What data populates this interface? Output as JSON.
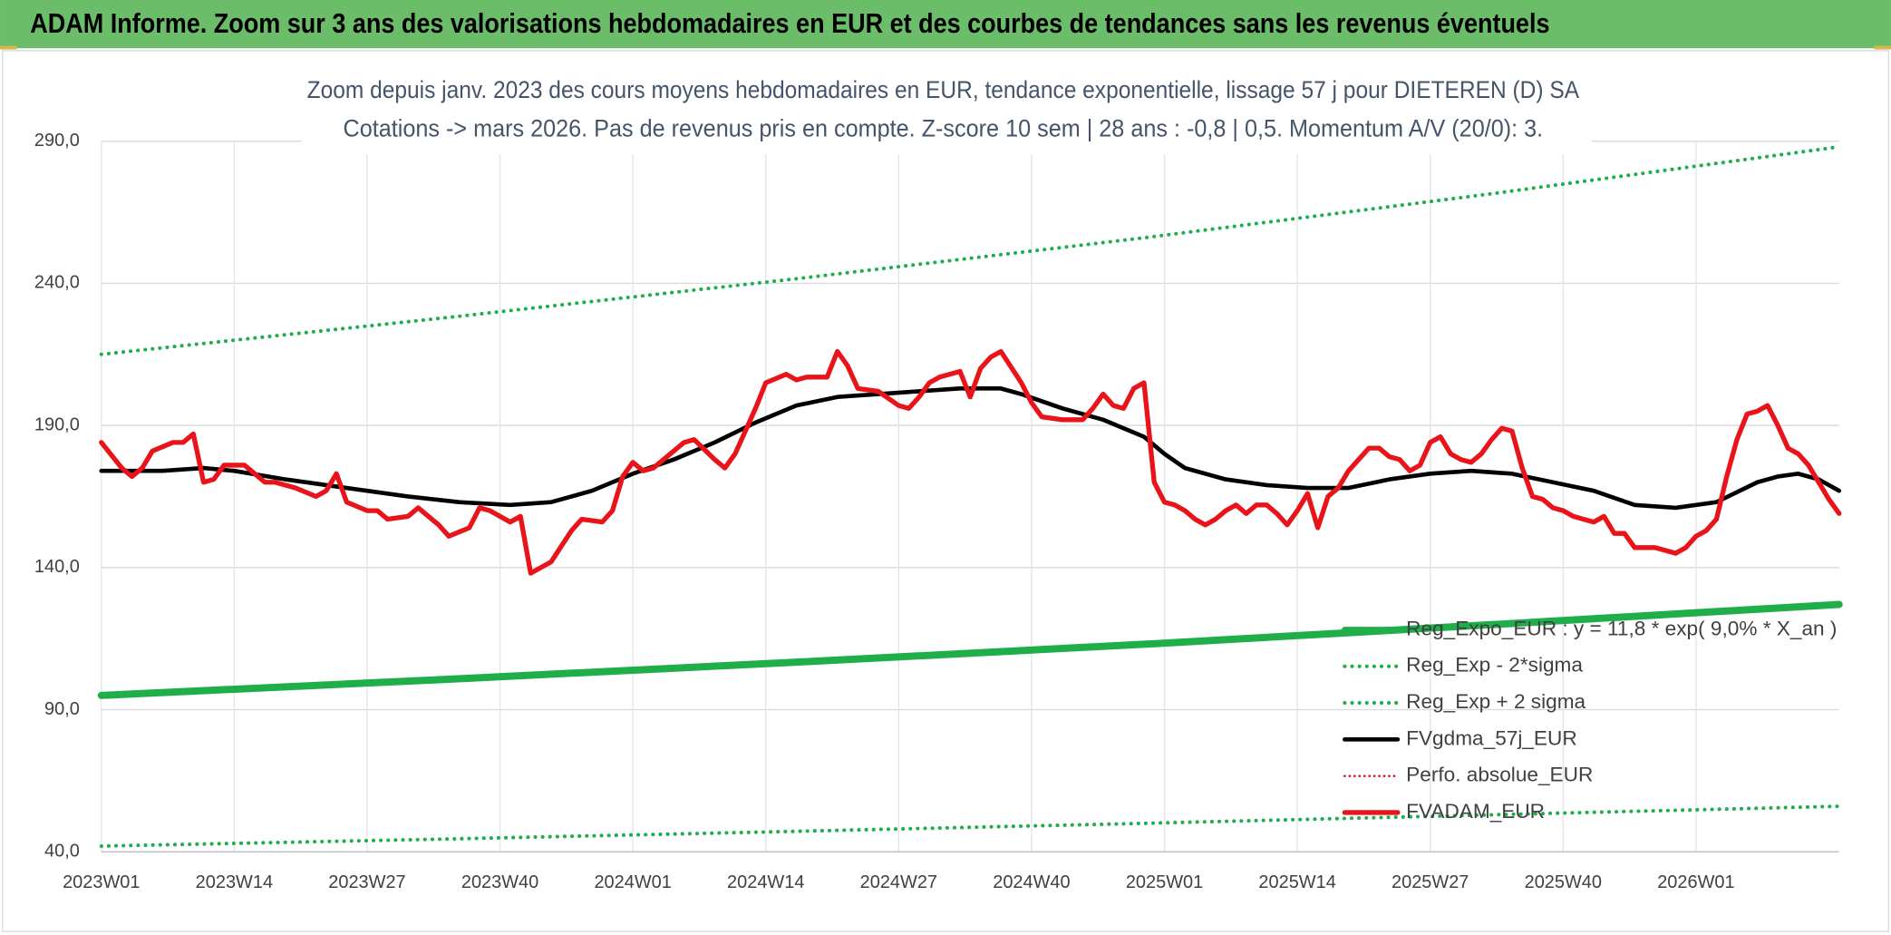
{
  "header": "ADAM Informe. Zoom sur 3 ans des valorisations hebdomadaires en EUR et des courbes de tendances sans les revenus éventuels",
  "chart_data": {
    "type": "line",
    "title": "Zoom depuis janv. 2023 des cours moyens hebdomadaires en EUR, tendance exponentielle, lissage 57 j pour DIETEREN (D) SA",
    "subtitle": "Cotations -> mars 2026. Pas de revenus pris en compte. Z-score 10 sem | 28 ans : -0,8 | 0,5. Momentum A/V (20/0): 3.",
    "xlim": [
      0,
      170
    ],
    "xticks": [
      {
        "value": 0,
        "label": "2023W01"
      },
      {
        "value": 13,
        "label": "2023W14"
      },
      {
        "value": 26,
        "label": "2023W27"
      },
      {
        "value": 39,
        "label": "2023W40"
      },
      {
        "value": 52,
        "label": "2024W01"
      },
      {
        "value": 65,
        "label": "2024W14"
      },
      {
        "value": 78,
        "label": "2024W27"
      },
      {
        "value": 91,
        "label": "2024W40"
      },
      {
        "value": 104,
        "label": "2025W01"
      },
      {
        "value": 117,
        "label": "2025W14"
      },
      {
        "value": 130,
        "label": "2025W27"
      },
      {
        "value": 143,
        "label": "2025W40"
      },
      {
        "value": 156,
        "label": "2026W01"
      }
    ],
    "ylim": [
      40,
      290
    ],
    "yticks": [
      {
        "value": 40,
        "label": "40,0"
      },
      {
        "value": 90,
        "label": "90,0"
      },
      {
        "value": 140,
        "label": "140,0"
      },
      {
        "value": 190,
        "label": "190,0"
      },
      {
        "value": 240,
        "label": "240,0"
      },
      {
        "value": 290,
        "label": "290,0"
      }
    ],
    "grid": true,
    "legend": "lower right",
    "series": [
      {
        "name": "Reg_Expo_EUR : y = 11,8 * exp( 9,0% *  X_an )",
        "color": "#1fae4a",
        "style": "solid",
        "width": 6,
        "x": [
          0,
          34,
          68,
          102,
          136,
          170
        ],
        "values": [
          95,
          100.7,
          106.7,
          113,
          119.9,
          127
        ]
      },
      {
        "name": "Reg_Exp - 2*sigma",
        "color": "#1fae4a",
        "style": "dotted",
        "width": 3,
        "x": [
          0,
          34,
          68,
          102,
          136,
          170
        ],
        "values": [
          42,
          44.5,
          47.2,
          50,
          53,
          56
        ]
      },
      {
        "name": "Reg_Exp + 2 sigma",
        "color": "#1fae4a",
        "style": "dotted",
        "width": 3,
        "x": [
          0,
          34,
          68,
          102,
          136,
          170
        ],
        "values": [
          215,
          228,
          241.6,
          256,
          271.5,
          288
        ]
      },
      {
        "name": "FVgdma_57j_EUR",
        "color": "#000000",
        "style": "solid",
        "width": 3.5,
        "x": [
          0,
          6,
          10,
          13,
          18,
          24,
          30,
          35,
          40,
          44,
          48,
          52,
          56,
          60,
          64,
          68,
          72,
          76,
          80,
          84,
          88,
          90,
          94,
          98,
          102,
          104,
          106,
          110,
          114,
          118,
          122,
          126,
          130,
          134,
          138,
          142,
          146,
          150,
          154,
          158,
          162,
          164,
          166,
          168,
          170
        ],
        "values": [
          174,
          174,
          175,
          174,
          171,
          168,
          165,
          163,
          162,
          163,
          167,
          173,
          178,
          184,
          191,
          197,
          200,
          201,
          202,
          203,
          203,
          201,
          196,
          192,
          186,
          180,
          175,
          171,
          169,
          168,
          168,
          171,
          173,
          174,
          173,
          170,
          167,
          162,
          161,
          163,
          170,
          172,
          173,
          171,
          167
        ]
      },
      {
        "name": "Perfo. absolue_EUR",
        "color": "#e8141a",
        "style": "dotted",
        "width": 2,
        "x": [],
        "values": []
      },
      {
        "name": "FVADAM_EUR",
        "color": "#e8141a",
        "style": "solid",
        "width": 4,
        "x": [
          0,
          2,
          3,
          4,
          5,
          7,
          8,
          9,
          10,
          11,
          12,
          14,
          15,
          16,
          17,
          19,
          21,
          22,
          23,
          24,
          26,
          27,
          28,
          30,
          31,
          33,
          34,
          36,
          37,
          38,
          40,
          41,
          42,
          44,
          46,
          47,
          49,
          50,
          51,
          52,
          53,
          54,
          56,
          57,
          58,
          60,
          61,
          62,
          64,
          65,
          67,
          68,
          69,
          71,
          72,
          73,
          74,
          76,
          78,
          79,
          80,
          81,
          82,
          84,
          85,
          86,
          87,
          88,
          90,
          91,
          92,
          94,
          96,
          97,
          98,
          99,
          100,
          101,
          102,
          103,
          104,
          105,
          106,
          107,
          108,
          109,
          110,
          111,
          112,
          113,
          114,
          115,
          116,
          117,
          118,
          119,
          120,
          121,
          122,
          123,
          124,
          125,
          126,
          127,
          128,
          129,
          130,
          131,
          132,
          133,
          134,
          135,
          136,
          137,
          138,
          139,
          140,
          141,
          142,
          143,
          144,
          145,
          146,
          147,
          148,
          149,
          150,
          151,
          152,
          153,
          154,
          155,
          156,
          157,
          158,
          159,
          160,
          161,
          162,
          163,
          164,
          165,
          166,
          167,
          168,
          169,
          170
        ],
        "values": [
          184,
          175,
          172,
          175,
          181,
          184,
          184,
          187,
          170,
          171,
          176,
          176,
          173,
          170,
          170,
          168,
          165,
          167,
          173,
          163,
          160,
          160,
          157,
          158,
          161,
          155,
          151,
          154,
          161,
          160,
          156,
          158,
          138,
          142,
          153,
          157,
          156,
          160,
          172,
          177,
          174,
          175,
          181,
          184,
          185,
          178,
          175,
          180,
          196,
          205,
          208,
          206,
          207,
          207,
          216,
          211,
          203,
          202,
          197,
          196,
          200,
          205,
          207,
          209,
          200,
          210,
          214,
          216,
          205,
          198,
          193,
          192,
          192,
          196,
          201,
          197,
          196,
          203,
          205,
          170,
          163,
          162,
          160,
          157,
          155,
          157,
          160,
          162,
          159,
          162,
          162,
          159,
          155,
          160,
          166,
          154,
          165,
          168,
          174,
          178,
          182,
          182,
          179,
          178,
          174,
          176,
          184,
          186,
          180,
          178,
          177,
          180,
          185,
          189,
          188,
          175,
          165,
          164,
          161,
          160,
          158,
          157,
          156,
          158,
          152,
          152,
          147,
          147,
          147,
          146,
          145,
          147,
          151,
          153,
          157,
          172,
          185,
          194,
          195,
          197,
          190,
          182,
          180,
          176,
          170,
          164,
          159
        ]
      }
    ]
  }
}
